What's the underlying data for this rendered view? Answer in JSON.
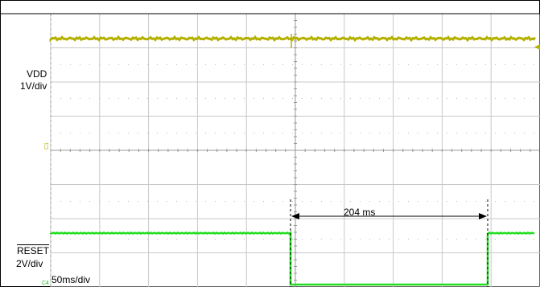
{
  "chart_data": {
    "type": "line",
    "time_base": "50ms/div",
    "grid": true,
    "traces": [
      {
        "label": "VDD",
        "scale": "1V/div",
        "marker": "C1",
        "color": "#b5b000",
        "description": "steady high level with a small glitch at the reset event"
      },
      {
        "label": "RESET",
        "label_overline": true,
        "scale": "2V/div",
        "marker": "C4",
        "color": "#22dd22",
        "description": "high, low pulse, then high again"
      }
    ],
    "annotation": {
      "text": "204 ms",
      "value_ms": 204
    }
  },
  "colors": {
    "grid": "#c8c8c8",
    "center_axis": "#999999",
    "vdd": "#b5b000",
    "reset": "#22dd22",
    "annotation": "#000000"
  }
}
